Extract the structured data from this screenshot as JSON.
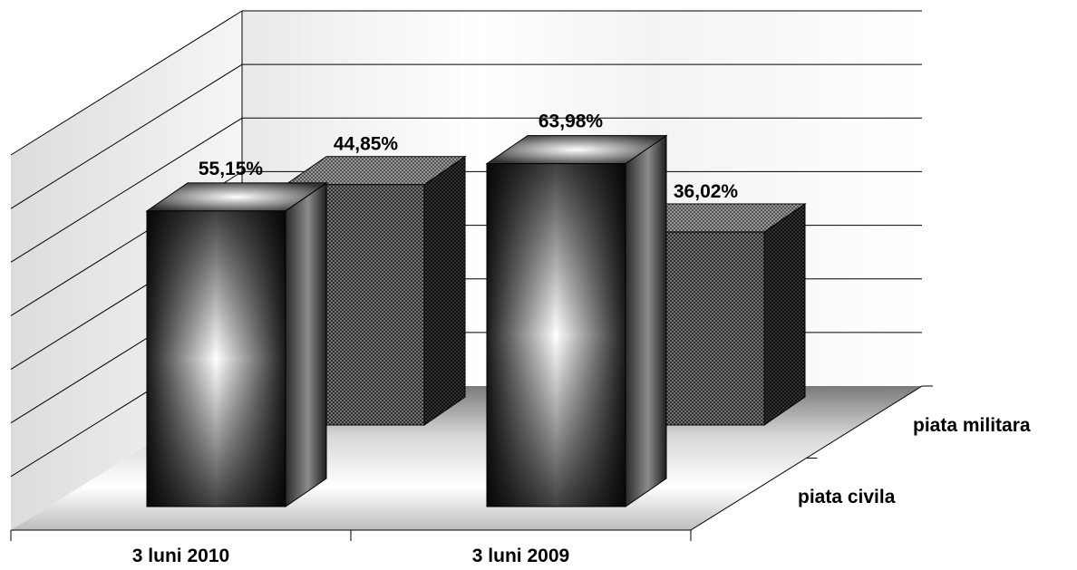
{
  "chart_data": {
    "type": "bar",
    "categories": [
      "3 luni 2010",
      "3 luni 2009"
    ],
    "series": [
      {
        "name": "piata civila",
        "values": [
          55.15,
          63.98
        ],
        "labels": [
          "55,15%",
          "63,98%"
        ]
      },
      {
        "name": "piata militara",
        "values": [
          44.85,
          36.02
        ],
        "labels": [
          "44,85%",
          "36,02%"
        ]
      }
    ],
    "ylim": [
      0,
      70
    ],
    "grid": true,
    "chart_style": "3d-column",
    "colors": {
      "front_series": "gradient-dark-gray",
      "back_series": "cross-hatch-gray"
    }
  }
}
